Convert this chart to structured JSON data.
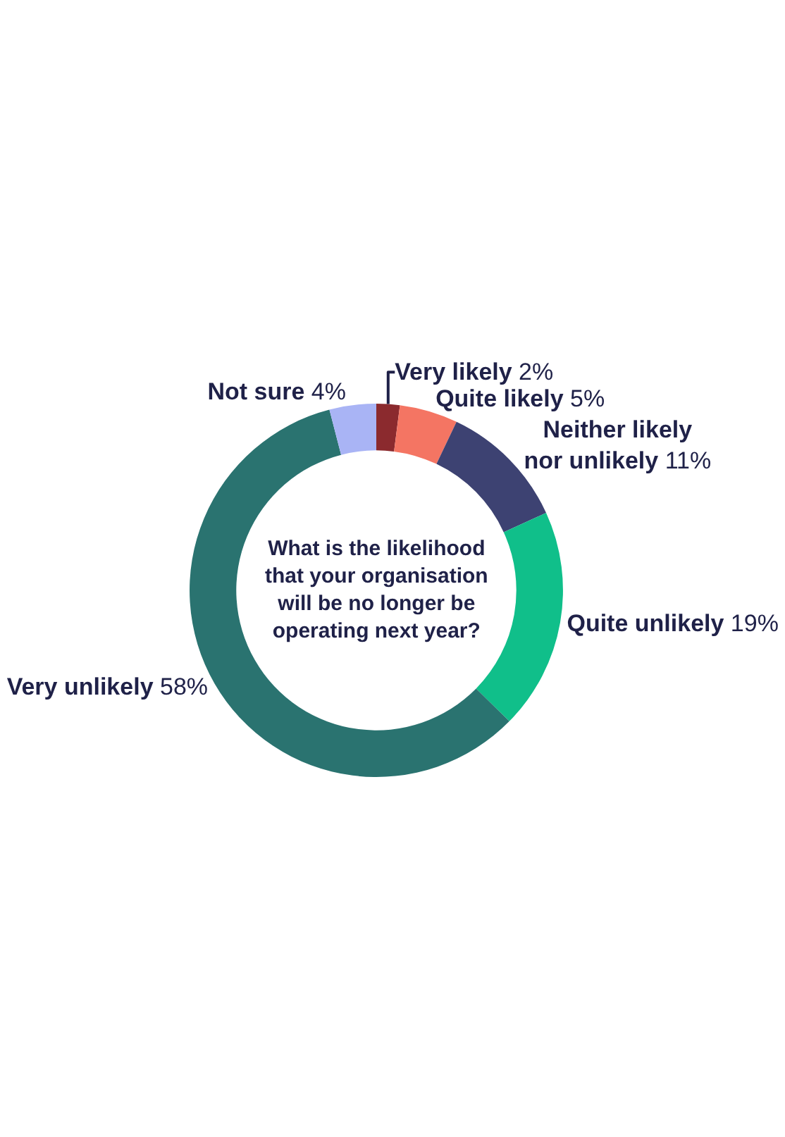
{
  "chart_data": {
    "type": "donut",
    "title": "What is the likelihood that your organisation will be no longer be operating next year?",
    "categories": [
      "Very likely",
      "Quite likely",
      "Neither likely nor unlikely",
      "Quite unlikely",
      "Very unlikely",
      "Not sure"
    ],
    "values": [
      2,
      5,
      11,
      19,
      58,
      4
    ],
    "value_labels": [
      "2%",
      "5%",
      "11%",
      "19%",
      "58%",
      "4%"
    ],
    "colors": [
      "#8b2a2e",
      "#f47563",
      "#3d4272",
      "#10bf8a",
      "#2a7370",
      "#a9b4f5"
    ],
    "legend": false
  }
}
